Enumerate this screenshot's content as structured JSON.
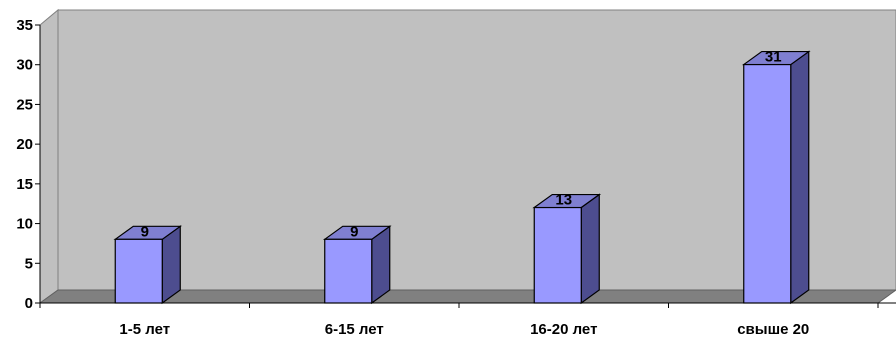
{
  "chart_data": {
    "type": "bar",
    "categories": [
      "1-5 лет",
      "6-15 лет",
      "16-20 лет",
      "свыше 20"
    ],
    "values": [
      9,
      9,
      13,
      31
    ],
    "data_labels": [
      "9",
      "9",
      "13",
      "31"
    ],
    "y_ticks": [
      "0",
      "5",
      "10",
      "15",
      "20",
      "25",
      "30",
      "35"
    ],
    "ylim": [
      0,
      35
    ],
    "grid": false,
    "legend": "none",
    "style": "3d-column"
  },
  "colors": {
    "wall": "#c0c0c0",
    "floor": "#808080",
    "bar_front": "#9999ff",
    "bar_side": "#4d4d8f",
    "bar_top": "#7f7fd1",
    "outline": "#000000"
  }
}
